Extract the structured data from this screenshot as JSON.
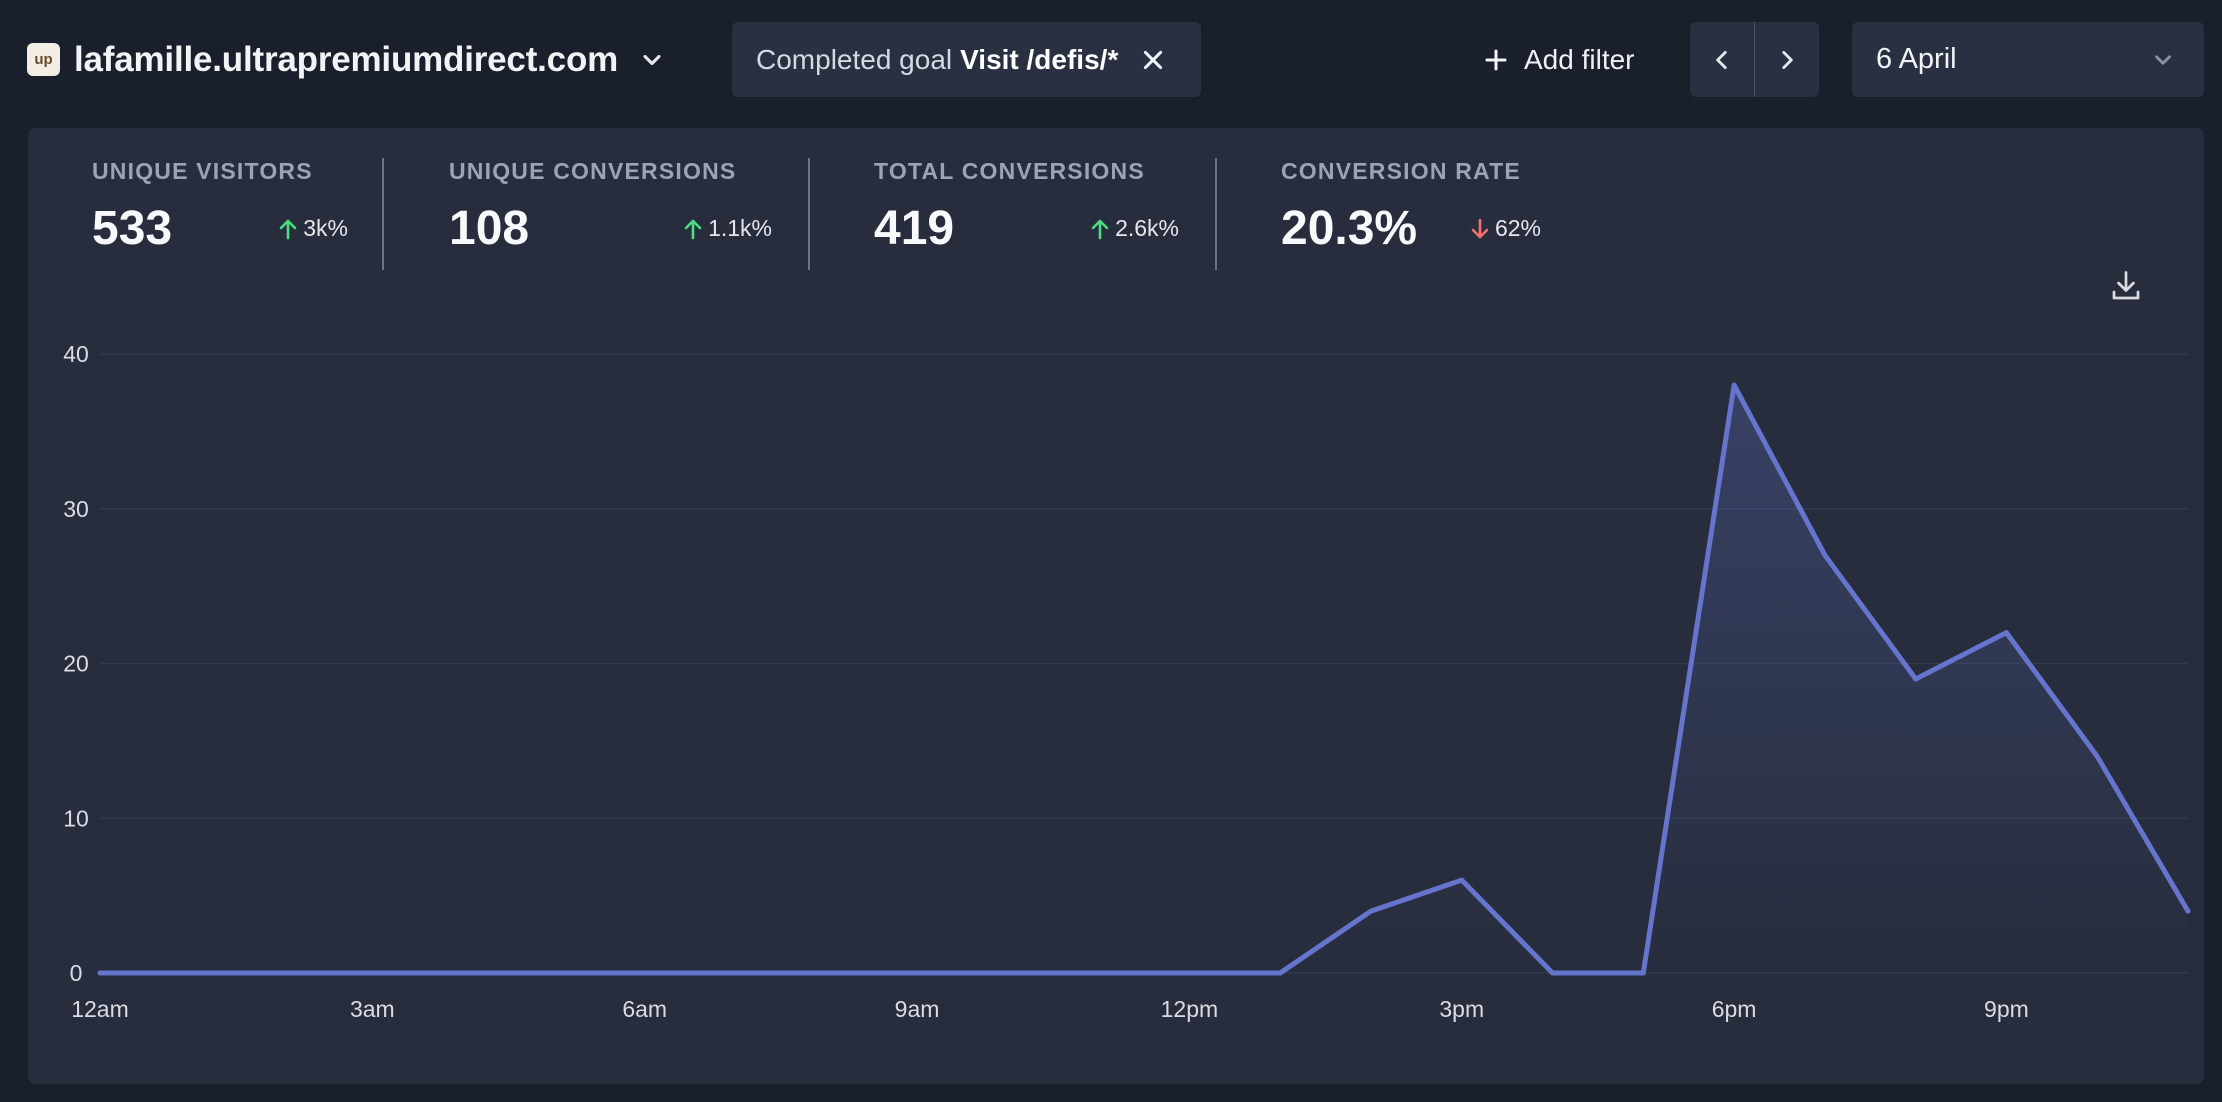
{
  "site": {
    "favicon_text": "up",
    "name": "lafamille.ultrapremiumdirect.com"
  },
  "filter": {
    "prefix": "Completed goal",
    "value": "Visit /defis/*"
  },
  "toolbar": {
    "add_filter_label": "Add filter",
    "date_label": "6 April"
  },
  "metrics": [
    {
      "label": "UNIQUE VISITORS",
      "value": "533",
      "change": "3k%",
      "direction": "up"
    },
    {
      "label": "UNIQUE CONVERSIONS",
      "value": "108",
      "change": "1.1k%",
      "direction": "up"
    },
    {
      "label": "TOTAL CONVERSIONS",
      "value": "419",
      "change": "2.6k%",
      "direction": "up"
    },
    {
      "label": "CONVERSION RATE",
      "value": "20.3%",
      "change": "62%",
      "direction": "down"
    }
  ],
  "colors": {
    "up": "#4ade80",
    "down": "#f87171",
    "line": "#6574cd",
    "grid": "#323a4b"
  },
  "chart_data": {
    "type": "line",
    "ylim": [
      0,
      40
    ],
    "yticks": [
      "0",
      "10",
      "20",
      "30",
      "40"
    ],
    "xtick_labels": [
      "12am",
      "3am",
      "6am",
      "9am",
      "12pm",
      "3pm",
      "6pm",
      "9pm"
    ],
    "x": [
      "12am",
      "1am",
      "2am",
      "3am",
      "4am",
      "5am",
      "6am",
      "7am",
      "8am",
      "9am",
      "10am",
      "11am",
      "12pm",
      "1pm",
      "2pm",
      "3pm",
      "4pm",
      "5pm",
      "6pm",
      "7pm",
      "8pm",
      "9pm",
      "10pm",
      "11pm"
    ],
    "series": [
      {
        "values": [
          0,
          0,
          0,
          0,
          0,
          0,
          0,
          0,
          0,
          0,
          0,
          0,
          0,
          0,
          4,
          6,
          0,
          0,
          38,
          27,
          19,
          22,
          14,
          4
        ]
      }
    ],
    "grid": true,
    "legend": "none"
  }
}
